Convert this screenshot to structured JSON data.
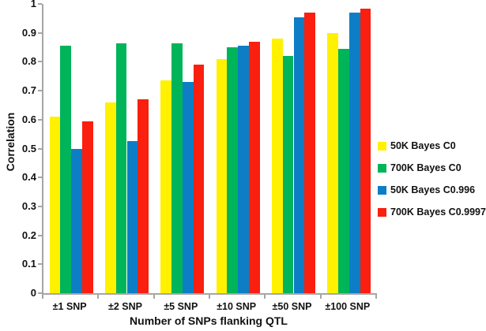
{
  "colors": {
    "axis": "#a6a6a6",
    "text": "#111111",
    "background": "#ffffff",
    "series_yellow": "#fff100",
    "series_green": "#00b45a",
    "series_blue": "#0d7ec6",
    "series_red": "#fa1f0e"
  },
  "chart_data": {
    "type": "bar",
    "title": "",
    "xlabel": "Number of SNPs flanking QTL",
    "ylabel": "Correlation",
    "ylim": [
      0,
      1
    ],
    "ytick_step": 0.1,
    "ytick_labels": [
      "0",
      "0.1",
      "0.2",
      "0.3",
      "0.4",
      "0.5",
      "0.6",
      "0.7",
      "0.8",
      "0.9",
      "1"
    ],
    "categories": [
      "±1 SNP",
      "±2 SNP",
      "±5 SNP",
      "±10 SNP",
      "±50 SNP",
      "±100 SNP"
    ],
    "series": [
      {
        "name": "50K Bayes C0",
        "color": "#fff100",
        "values": [
          0.61,
          0.66,
          0.735,
          0.81,
          0.88,
          0.9
        ]
      },
      {
        "name": "700K Bayes C0",
        "color": "#00b45a",
        "values": [
          0.855,
          0.865,
          0.865,
          0.85,
          0.82,
          0.845
        ]
      },
      {
        "name": "50K Bayes C0.996",
        "color": "#0d7ec6",
        "values": [
          0.5,
          0.525,
          0.73,
          0.855,
          0.955,
          0.97
        ]
      },
      {
        "name": "700K Bayes C0.9997",
        "color": "#fa1f0e",
        "values": [
          0.595,
          0.67,
          0.79,
          0.87,
          0.97,
          0.985
        ]
      }
    ],
    "legend_position": "right",
    "grid": false
  }
}
